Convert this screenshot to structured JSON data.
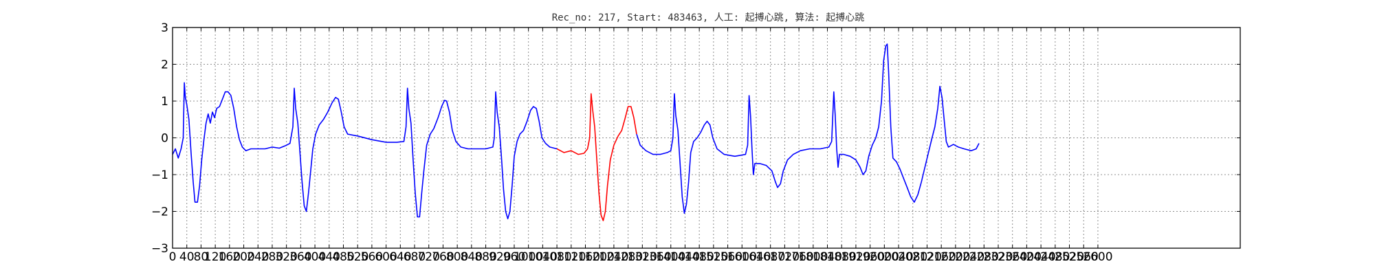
{
  "chart_data": {
    "type": "line",
    "title": "Rec_no: 217, Start: 483463, 人工: 起搏心跳, 算法: 起搏心跳",
    "xlabel": "",
    "ylabel": "",
    "xlim": [
      0,
      3000
    ],
    "ylim": [
      -3,
      3
    ],
    "grid": true,
    "x_ticks": [
      0,
      40,
      80,
      120,
      160,
      200,
      240,
      280,
      320,
      360,
      400,
      440,
      480,
      520,
      560,
      600,
      640,
      680,
      720,
      760,
      800,
      840,
      880,
      920,
      960,
      1000,
      1040,
      1080,
      1120,
      1160,
      1200,
      1240,
      1280,
      1320,
      1360,
      1400,
      1440,
      1480,
      1520,
      1560,
      1600,
      1640,
      1680,
      1720,
      1760,
      1800,
      1840,
      1880,
      1920,
      1960,
      2000,
      2040,
      2080,
      2120,
      2160,
      2200,
      2240,
      2280,
      2320,
      2360,
      2400,
      2440,
      2480,
      2520,
      2560,
      2600
    ],
    "x_tick_labels": [
      "0",
      "40",
      "80",
      "120",
      "160",
      "200",
      "240",
      "280",
      "320",
      "360",
      "400",
      "440",
      "480",
      "520",
      "560",
      "600",
      "640",
      "680",
      "720",
      "760",
      "800",
      "840",
      "880",
      "920",
      "960",
      "1000",
      "1040",
      "1080",
      "1120",
      "1160",
      "1200",
      "1240",
      "1280",
      "1320",
      "1360",
      "1400",
      "1440",
      "1480",
      "1520",
      "1560",
      "1600",
      "1640",
      "1680",
      "1720",
      "1760",
      "1800",
      "1840",
      "1880",
      "1920",
      "1960",
      "2000",
      "2040",
      "2080",
      "2120",
      "2160",
      "2200",
      "2240",
      "2280",
      "2320",
      "2360",
      "2400",
      "2440",
      "2480",
      "2520",
      "2560",
      "2600"
    ],
    "y_ticks": [
      -3,
      -2,
      -1,
      0,
      1,
      2,
      3
    ],
    "y_tick_labels": [
      "−3",
      "−2",
      "−1",
      "0",
      "1",
      "2",
      "3"
    ],
    "series": [
      {
        "name": "ecg-before",
        "color": "#0000ff",
        "points": [
          [
            0,
            -0.45
          ],
          [
            8,
            -0.3
          ],
          [
            16,
            -0.55
          ],
          [
            24,
            -0.3
          ],
          [
            30,
            0.0
          ],
          [
            33,
            1.5
          ],
          [
            36,
            1.1
          ],
          [
            40,
            0.9
          ],
          [
            46,
            0.5
          ],
          [
            52,
            -0.4
          ],
          [
            58,
            -1.2
          ],
          [
            63,
            -1.75
          ],
          [
            70,
            -1.75
          ],
          [
            76,
            -1.3
          ],
          [
            82,
            -0.6
          ],
          [
            88,
            -0.05
          ],
          [
            94,
            0.4
          ],
          [
            100,
            0.65
          ],
          [
            106,
            0.4
          ],
          [
            112,
            0.7
          ],
          [
            118,
            0.55
          ],
          [
            124,
            0.8
          ],
          [
            132,
            0.85
          ],
          [
            140,
            1.05
          ],
          [
            148,
            1.25
          ],
          [
            156,
            1.25
          ],
          [
            164,
            1.15
          ],
          [
            172,
            0.8
          ],
          [
            180,
            0.3
          ],
          [
            188,
            -0.05
          ],
          [
            196,
            -0.25
          ],
          [
            206,
            -0.35
          ],
          [
            220,
            -0.3
          ],
          [
            240,
            -0.3
          ],
          [
            260,
            -0.3
          ],
          [
            280,
            -0.25
          ],
          [
            300,
            -0.28
          ],
          [
            320,
            -0.2
          ],
          [
            330,
            -0.15
          ],
          [
            338,
            0.3
          ],
          [
            342,
            1.35
          ],
          [
            346,
            0.8
          ],
          [
            352,
            0.4
          ],
          [
            358,
            -0.4
          ],
          [
            364,
            -1.2
          ],
          [
            370,
            -1.85
          ],
          [
            376,
            -2.0
          ],
          [
            382,
            -1.5
          ],
          [
            388,
            -0.9
          ],
          [
            394,
            -0.3
          ],
          [
            402,
            0.1
          ],
          [
            412,
            0.35
          ],
          [
            424,
            0.5
          ],
          [
            436,
            0.7
          ],
          [
            448,
            0.95
          ],
          [
            458,
            1.1
          ],
          [
            466,
            1.05
          ],
          [
            474,
            0.7
          ],
          [
            482,
            0.3
          ],
          [
            492,
            0.1
          ],
          [
            520,
            0.05
          ],
          [
            560,
            -0.05
          ],
          [
            600,
            -0.12
          ],
          [
            630,
            -0.12
          ],
          [
            650,
            -0.1
          ],
          [
            656,
            0.3
          ],
          [
            660,
            1.35
          ],
          [
            664,
            0.8
          ],
          [
            670,
            0.4
          ],
          [
            676,
            -0.6
          ],
          [
            682,
            -1.5
          ],
          [
            688,
            -2.15
          ],
          [
            694,
            -2.15
          ],
          [
            700,
            -1.5
          ],
          [
            706,
            -0.9
          ],
          [
            714,
            -0.2
          ],
          [
            724,
            0.1
          ],
          [
            734,
            0.25
          ],
          [
            746,
            0.55
          ],
          [
            756,
            0.85
          ],
          [
            764,
            1.02
          ],
          [
            770,
            1.0
          ],
          [
            778,
            0.7
          ],
          [
            786,
            0.2
          ],
          [
            796,
            -0.1
          ],
          [
            810,
            -0.25
          ],
          [
            830,
            -0.3
          ],
          [
            850,
            -0.3
          ],
          [
            880,
            -0.3
          ],
          [
            900,
            -0.25
          ],
          [
            904,
            0.0
          ],
          [
            908,
            1.25
          ],
          [
            912,
            0.7
          ],
          [
            918,
            0.3
          ],
          [
            924,
            -0.5
          ],
          [
            930,
            -1.4
          ],
          [
            936,
            -2.0
          ],
          [
            942,
            -2.2
          ],
          [
            948,
            -2.0
          ],
          [
            954,
            -1.3
          ],
          [
            960,
            -0.5
          ],
          [
            968,
            -0.1
          ],
          [
            976,
            0.1
          ],
          [
            986,
            0.2
          ],
          [
            996,
            0.45
          ],
          [
            1006,
            0.75
          ],
          [
            1014,
            0.85
          ],
          [
            1022,
            0.8
          ],
          [
            1030,
            0.45
          ],
          [
            1038,
            0.0
          ],
          [
            1048,
            -0.15
          ],
          [
            1060,
            -0.25
          ],
          [
            1080,
            -0.3
          ]
        ]
      },
      {
        "name": "ecg-highlight",
        "color": "#ff0000",
        "points": [
          [
            1080,
            -0.3
          ],
          [
            1100,
            -0.4
          ],
          [
            1120,
            -0.35
          ],
          [
            1140,
            -0.45
          ],
          [
            1156,
            -0.42
          ],
          [
            1166,
            -0.3
          ],
          [
            1172,
            0.0
          ],
          [
            1176,
            1.2
          ],
          [
            1180,
            0.8
          ],
          [
            1186,
            0.3
          ],
          [
            1192,
            -0.6
          ],
          [
            1198,
            -1.5
          ],
          [
            1204,
            -2.1
          ],
          [
            1210,
            -2.25
          ],
          [
            1216,
            -2.0
          ],
          [
            1222,
            -1.3
          ],
          [
            1230,
            -0.6
          ],
          [
            1240,
            -0.2
          ],
          [
            1252,
            0.05
          ],
          [
            1262,
            0.2
          ],
          [
            1272,
            0.55
          ],
          [
            1280,
            0.85
          ],
          [
            1288,
            0.85
          ],
          [
            1296,
            0.55
          ],
          [
            1304,
            0.1
          ]
        ]
      },
      {
        "name": "ecg-after",
        "color": "#0000ff",
        "points": [
          [
            1304,
            0.1
          ],
          [
            1314,
            -0.2
          ],
          [
            1330,
            -0.35
          ],
          [
            1350,
            -0.45
          ],
          [
            1370,
            -0.45
          ],
          [
            1390,
            -0.4
          ],
          [
            1400,
            -0.35
          ],
          [
            1406,
            0.0
          ],
          [
            1410,
            1.2
          ],
          [
            1414,
            0.6
          ],
          [
            1420,
            0.2
          ],
          [
            1426,
            -0.7
          ],
          [
            1432,
            -1.6
          ],
          [
            1438,
            -2.05
          ],
          [
            1444,
            -1.8
          ],
          [
            1450,
            -1.2
          ],
          [
            1456,
            -0.4
          ],
          [
            1464,
            -0.1
          ],
          [
            1474,
            0.0
          ],
          [
            1484,
            0.15
          ],
          [
            1494,
            0.35
          ],
          [
            1502,
            0.45
          ],
          [
            1510,
            0.35
          ],
          [
            1518,
            0.0
          ],
          [
            1530,
            -0.3
          ],
          [
            1550,
            -0.45
          ],
          [
            1580,
            -0.5
          ],
          [
            1610,
            -0.45
          ],
          [
            1616,
            -0.2
          ],
          [
            1620,
            1.15
          ],
          [
            1624,
            0.6
          ],
          [
            1628,
            -0.3
          ],
          [
            1632,
            -1.0
          ],
          [
            1636,
            -0.7
          ],
          [
            1650,
            -0.7
          ],
          [
            1668,
            -0.75
          ],
          [
            1684,
            -0.9
          ],
          [
            1694,
            -1.2
          ],
          [
            1700,
            -1.35
          ],
          [
            1708,
            -1.25
          ],
          [
            1716,
            -0.9
          ],
          [
            1728,
            -0.6
          ],
          [
            1744,
            -0.45
          ],
          [
            1764,
            -0.35
          ],
          [
            1790,
            -0.3
          ],
          [
            1820,
            -0.3
          ],
          [
            1844,
            -0.25
          ],
          [
            1852,
            -0.1
          ],
          [
            1858,
            1.25
          ],
          [
            1862,
            0.6
          ],
          [
            1866,
            -0.3
          ],
          [
            1870,
            -0.8
          ],
          [
            1874,
            -0.45
          ],
          [
            1886,
            -0.45
          ],
          [
            1904,
            -0.5
          ],
          [
            1920,
            -0.6
          ],
          [
            1932,
            -0.8
          ],
          [
            1940,
            -1.0
          ],
          [
            1948,
            -0.9
          ],
          [
            1956,
            -0.5
          ],
          [
            1966,
            -0.2
          ],
          [
            1976,
            0.0
          ],
          [
            1984,
            0.3
          ],
          [
            1992,
            1.0
          ],
          [
            1998,
            2.1
          ],
          [
            2004,
            2.5
          ],
          [
            2008,
            2.55
          ],
          [
            2012,
            1.8
          ],
          [
            2018,
            0.3
          ],
          [
            2024,
            -0.55
          ],
          [
            2034,
            -0.65
          ],
          [
            2044,
            -0.85
          ],
          [
            2054,
            -1.1
          ],
          [
            2064,
            -1.35
          ],
          [
            2074,
            -1.6
          ],
          [
            2084,
            -1.75
          ],
          [
            2094,
            -1.55
          ],
          [
            2104,
            -1.2
          ],
          [
            2114,
            -0.8
          ],
          [
            2124,
            -0.4
          ],
          [
            2134,
            0.0
          ],
          [
            2142,
            0.3
          ],
          [
            2150,
            0.8
          ],
          [
            2156,
            1.4
          ],
          [
            2162,
            1.1
          ],
          [
            2168,
            0.5
          ],
          [
            2174,
            -0.1
          ],
          [
            2180,
            -0.25
          ],
          [
            2194,
            -0.18
          ],
          [
            2208,
            -0.25
          ],
          [
            2224,
            -0.3
          ],
          [
            2244,
            -0.35
          ],
          [
            2258,
            -0.3
          ],
          [
            2266,
            -0.15
          ]
        ]
      }
    ]
  }
}
